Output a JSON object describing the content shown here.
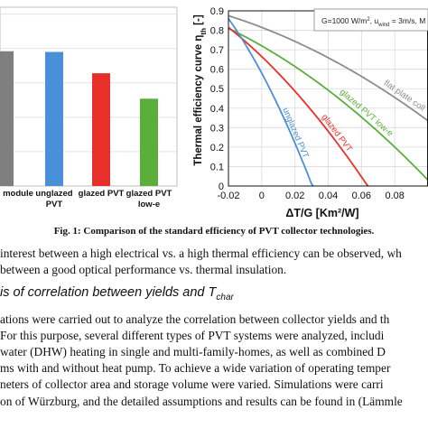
{
  "chart_data": [
    {
      "type": "bar",
      "categories": [
        "module",
        "unglazed PVT",
        "glazed PVT",
        "glazed PVT low-e"
      ],
      "category_lines": [
        [
          "module"
        ],
        [
          "unglazed",
          "PVT"
        ],
        [
          "glazed PVT"
        ],
        [
          "glazed PVT",
          "low-e"
        ]
      ],
      "colors": [
        "#7f7f7f",
        "#4a90d9",
        "#e8302a",
        "#5aae3a"
      ],
      "values": [
        0.196,
        0.195,
        0.164,
        0.127
      ],
      "ylim": [
        0,
        0.26
      ],
      "title": "",
      "xlabel": "",
      "ylabel": "",
      "grid": true
    },
    {
      "type": "line",
      "xlabel": "ΔT/G [Km²/W]",
      "ylabel": "Thermal efficiency curve η",
      "ylabel_sub": "th",
      "ylabel_unit": " [-]",
      "xlim": [
        -0.02,
        0.1
      ],
      "ylim": [
        0,
        0.9
      ],
      "xticks": [
        -0.02,
        0,
        0.02,
        0.04,
        0.06,
        0.08
      ],
      "xtick_labels": [
        "-0.02",
        "0",
        "0.02",
        "0.04",
        "0.06",
        "0.08"
      ],
      "yticks": [
        0,
        0.1,
        0.2,
        0.3,
        0.4,
        0.5,
        0.6,
        0.7,
        0.8,
        0.9
      ],
      "ytick_labels": [
        "0",
        "0.1",
        "0.2",
        "0.3",
        "0.4",
        "0.5",
        "0.6",
        "0.7",
        "0.8",
        "0.9"
      ],
      "grid": true,
      "legend_box": {
        "prefix": "G=1000 W/m",
        "sup": "2",
        "mid": ", u",
        "sub": "wind",
        "suffix": " = 3m/s, M"
      },
      "series": [
        {
          "name": "flat plate coll",
          "color": "#8c8c8c",
          "eta0": 0.815,
          "a1": 3.3,
          "a2": 0.015
        },
        {
          "name": "glazed PVT low-e",
          "color": "#5aae3a",
          "eta0": 0.72,
          "a1": 4.9,
          "a2": 0.02
        },
        {
          "name": "glazed PVT",
          "color": "#e8302a",
          "eta0": 0.665,
          "a1": 8.2,
          "a2": 0.035
        },
        {
          "name": "unglazed PVT",
          "color": "#4a90d9",
          "eta0": 0.58,
          "a1": 16.0,
          "a2": 0.1
        }
      ]
    }
  ],
  "caption": "Fig. 1: Comparison of the standard efficiency of PVT collector technologies.",
  "text": {
    "line1": "interest between a high electrical vs. a high thermal efficiency can be observed, wh",
    "line2": "between a good optical performance vs. thermal insulation.",
    "heading_main": "is of correlation between yields and T",
    "heading_sub": "char",
    "para": [
      "ations were carried out to analyze the correlation between collector yields and th",
      "For this purpose, several different types of PVT systems were analyzed, includi",
      " water (DHW) heating in single and multi-family-homes, as well as combined D",
      "ms with and without heat pump. To achieve a wide variation of operating temper",
      "neters of collector area and storage volume were varied. Simulations were carri",
      "on of Würzburg, and the detailed assumptions and results can be found in (Lämmle"
    ]
  }
}
